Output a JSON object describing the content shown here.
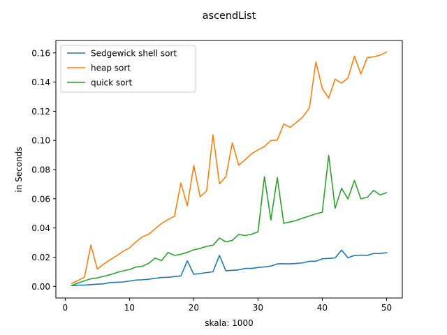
{
  "chart_data": {
    "type": "line",
    "title": "ascendList",
    "xlabel": "skala: 1000",
    "ylabel": "in Seconds",
    "xlim": [
      -1.45,
      52.45
    ],
    "ylim": [
      -0.008,
      0.1685
    ],
    "xticks": [
      0,
      10,
      20,
      30,
      40,
      50
    ],
    "yticks": [
      0.0,
      0.02,
      0.04,
      0.06,
      0.08,
      0.1,
      0.12,
      0.14,
      0.16
    ],
    "xtick_labels": [
      "0",
      "10",
      "20",
      "30",
      "40",
      "50"
    ],
    "ytick_labels": [
      "0.00",
      "0.02",
      "0.04",
      "0.06",
      "0.08",
      "0.10",
      "0.12",
      "0.14",
      "0.16"
    ],
    "grid": false,
    "legend_position": "upper-left",
    "x": [
      1,
      2,
      3,
      4,
      5,
      6,
      7,
      8,
      9,
      10,
      11,
      12,
      13,
      14,
      15,
      16,
      17,
      18,
      19,
      20,
      21,
      22,
      23,
      24,
      25,
      26,
      27,
      28,
      29,
      30,
      31,
      32,
      33,
      34,
      35,
      36,
      37,
      38,
      39,
      40,
      41,
      42,
      43,
      44,
      45,
      46,
      47,
      48,
      49,
      50
    ],
    "series": [
      {
        "name": "Sedgewick shell sort",
        "color": "#1f77b4",
        "values": [
          0.0005,
          0.0008,
          0.0008,
          0.0012,
          0.0015,
          0.0017,
          0.0026,
          0.0028,
          0.003,
          0.0036,
          0.0043,
          0.0045,
          0.0049,
          0.0055,
          0.0061,
          0.0062,
          0.0067,
          0.0071,
          0.0175,
          0.0083,
          0.0088,
          0.0094,
          0.01,
          0.0212,
          0.0107,
          0.011,
          0.0113,
          0.0123,
          0.0123,
          0.0129,
          0.0133,
          0.0139,
          0.0154,
          0.0155,
          0.0154,
          0.0157,
          0.0161,
          0.0172,
          0.0172,
          0.0189,
          0.0191,
          0.0195,
          0.0248,
          0.0196,
          0.0211,
          0.0214,
          0.0212,
          0.0225,
          0.0225,
          0.023
        ]
      },
      {
        "name": "heap sort",
        "color": "#ff7f0e",
        "values": [
          0.002,
          0.004,
          0.0063,
          0.0283,
          0.0118,
          0.0153,
          0.0182,
          0.021,
          0.024,
          0.0263,
          0.0305,
          0.034,
          0.0357,
          0.0395,
          0.0431,
          0.0458,
          0.048,
          0.0709,
          0.0551,
          0.0828,
          0.0614,
          0.0654,
          0.1038,
          0.0703,
          0.0752,
          0.0983,
          0.083,
          0.0868,
          0.0909,
          0.0935,
          0.0958,
          0.0999,
          0.1003,
          0.1112,
          0.109,
          0.1124,
          0.1162,
          0.1224,
          0.1538,
          0.1356,
          0.129,
          0.142,
          0.1393,
          0.1428,
          0.1578,
          0.1455,
          0.1568,
          0.1573,
          0.1585,
          0.1606
        ]
      },
      {
        "name": "quick sort",
        "color": "#2ca02c",
        "values": [
          0.0005,
          0.0023,
          0.0038,
          0.0052,
          0.0058,
          0.0069,
          0.008,
          0.0094,
          0.0106,
          0.0115,
          0.0132,
          0.0138,
          0.0158,
          0.0194,
          0.0176,
          0.0232,
          0.0212,
          0.022,
          0.0233,
          0.025,
          0.026,
          0.0274,
          0.0282,
          0.0331,
          0.0305,
          0.0315,
          0.0356,
          0.0348,
          0.0357,
          0.0374,
          0.0752,
          0.0455,
          0.0746,
          0.0432,
          0.0441,
          0.0452,
          0.0468,
          0.0482,
          0.0497,
          0.0508,
          0.0898,
          0.0535,
          0.0672,
          0.0599,
          0.0726,
          0.06,
          0.061,
          0.0658,
          0.0626,
          0.0642
        ]
      }
    ]
  }
}
